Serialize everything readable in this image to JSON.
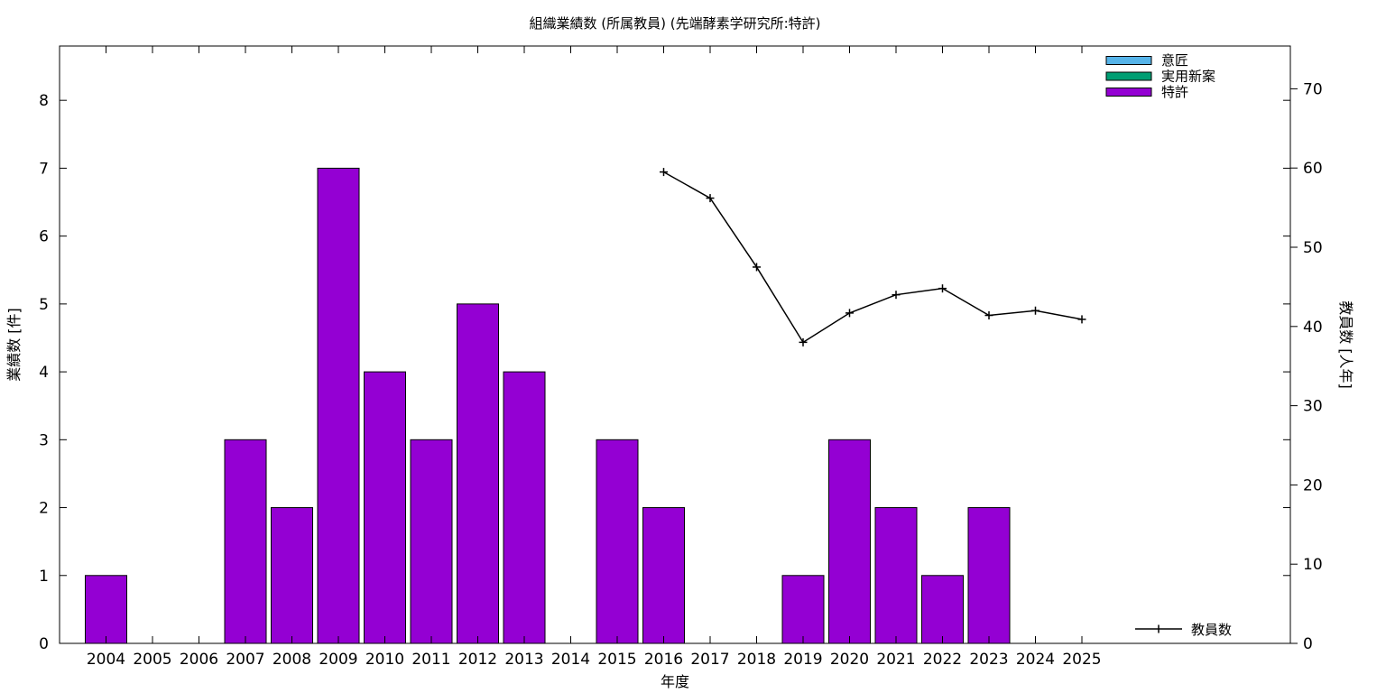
{
  "chart_data": {
    "type": "bar",
    "title": "組織業績数 (所属教員) (先端酵素学研究所:特許)",
    "xlabel": "年度",
    "ylabel": "業績数 [件]",
    "y2label": "教員数 [人年]",
    "categories": [
      "2004",
      "2005",
      "2006",
      "2007",
      "2008",
      "2009",
      "2010",
      "2011",
      "2012",
      "2013",
      "2014",
      "2015",
      "2016",
      "2017",
      "2018",
      "2019",
      "2020",
      "2021",
      "2022",
      "2023",
      "2024",
      "2025"
    ],
    "ylim": [
      0,
      8.8
    ],
    "y2lim": [
      0,
      75.4
    ],
    "yticks": [
      0,
      1,
      2,
      3,
      4,
      5,
      6,
      7,
      8
    ],
    "y2ticks": [
      0,
      10,
      20,
      30,
      40,
      50,
      60,
      70
    ],
    "series": [
      {
        "name": "意匠",
        "kind": "bar",
        "color": "#56b4e9",
        "values": [
          0,
          0,
          0,
          0,
          0,
          0,
          0,
          0,
          0,
          0,
          0,
          0,
          0,
          0,
          0,
          0,
          0,
          0,
          0,
          0,
          0,
          0
        ]
      },
      {
        "name": "実用新案",
        "kind": "bar",
        "color": "#009e73",
        "values": [
          0,
          0,
          0,
          0,
          0,
          0,
          0,
          0,
          0,
          0,
          0,
          0,
          0,
          0,
          0,
          0,
          0,
          0,
          0,
          0,
          0,
          0
        ]
      },
      {
        "name": "特許",
        "kind": "bar",
        "color": "#9400d3",
        "values": [
          1,
          0,
          0,
          3,
          2,
          7,
          4,
          3,
          5,
          4,
          0,
          3,
          2,
          0,
          0,
          1,
          3,
          2,
          1,
          2,
          0,
          0
        ]
      },
      {
        "name": "教員数",
        "kind": "line",
        "axis": "y2",
        "color": "#000000",
        "x": [
          "2016",
          "2017",
          "2018",
          "2019",
          "2020",
          "2021",
          "2022",
          "2023",
          "2024",
          "2025"
        ],
        "values": [
          59.5,
          56.2,
          47.5,
          38.0,
          41.7,
          44.0,
          44.8,
          41.4,
          42.0,
          40.9
        ]
      }
    ],
    "grid": false,
    "legend": [
      "top-right",
      "bottom-right"
    ]
  }
}
